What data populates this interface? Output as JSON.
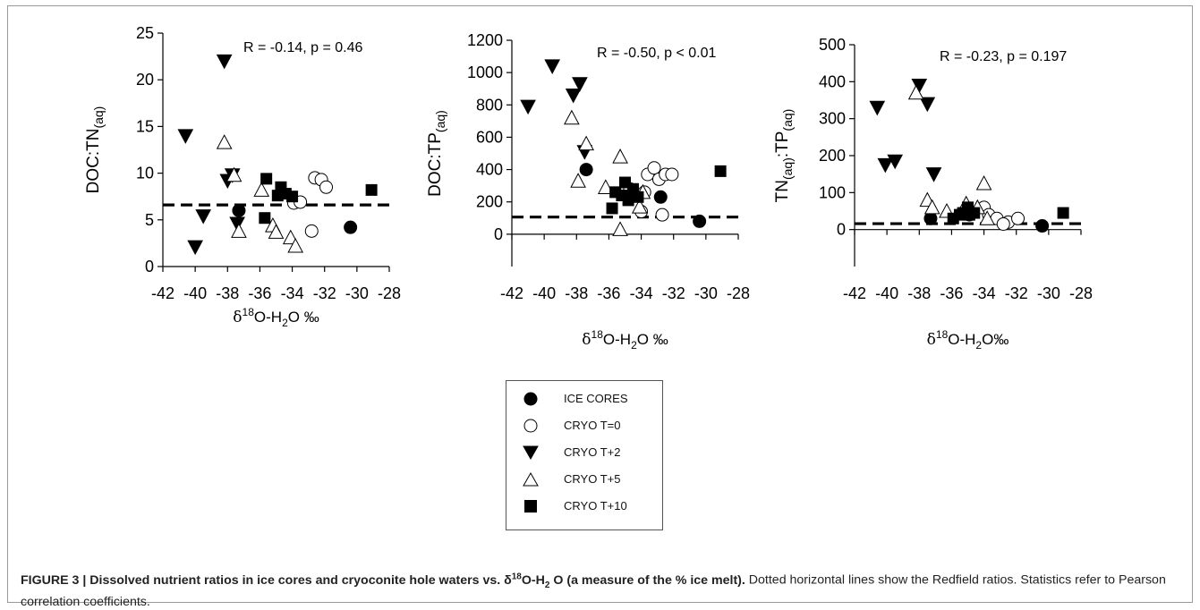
{
  "chart_data": [
    {
      "type": "scatter",
      "ylabel": "DOC:TN",
      "ylabel_sub": "(aq)",
      "xlabel_delta": "δ",
      "xlabel_sup": "18",
      "xlabel_a": "O-H",
      "xlabel_sub": "2",
      "xlabel_b": "O ‰",
      "annotation": "R = -0.14, p = 0.46",
      "xlim": [
        -42,
        -28
      ],
      "ylim": [
        0,
        25
      ],
      "xticks": [
        "-42",
        "-40",
        "-38",
        "-36",
        "-34",
        "-32",
        "-30",
        "-28"
      ],
      "yticks": [
        "0",
        "5",
        "10",
        "15",
        "20",
        "25"
      ],
      "redfield_ratio": 6.6,
      "series": [
        {
          "name": "ICE CORES",
          "marker": "circle-filled",
          "points": [
            [
              -37.3,
              6.0
            ],
            [
              -30.4,
              4.2
            ]
          ]
        },
        {
          "name": "CRYO T=0",
          "marker": "circle-open",
          "points": [
            [
              -32.6,
              9.5
            ],
            [
              -32.2,
              9.3
            ],
            [
              -31.9,
              8.5
            ],
            [
              -33.9,
              6.8
            ],
            [
              -33.5,
              6.9
            ],
            [
              -32.8,
              3.8
            ]
          ]
        },
        {
          "name": "CRYO T+2",
          "marker": "triangle-down-filled",
          "points": [
            [
              -40.6,
              14.0
            ],
            [
              -38.2,
              22.0
            ],
            [
              -38.0,
              9.2
            ],
            [
              -37.7,
              9.8
            ],
            [
              -39.5,
              5.4
            ],
            [
              -37.4,
              4.6
            ],
            [
              -40.0,
              2.1
            ]
          ]
        },
        {
          "name": "CRYO T+5",
          "marker": "triangle-up-open",
          "points": [
            [
              -38.2,
              13.3
            ],
            [
              -37.6,
              9.8
            ],
            [
              -35.9,
              8.2
            ],
            [
              -37.3,
              3.8
            ],
            [
              -35.2,
              4.4
            ],
            [
              -35.0,
              3.7
            ],
            [
              -34.1,
              3.1
            ],
            [
              -33.8,
              2.2
            ]
          ]
        },
        {
          "name": "CRYO T+10",
          "marker": "square-filled",
          "points": [
            [
              -35.6,
              9.4
            ],
            [
              -35.7,
              5.2
            ],
            [
              -34.9,
              7.6
            ],
            [
              -34.7,
              8.5
            ],
            [
              -34.4,
              7.8
            ],
            [
              -34.0,
              7.5
            ],
            [
              -29.1,
              8.2
            ]
          ]
        }
      ]
    },
    {
      "type": "scatter",
      "ylabel": "DOC:TP",
      "ylabel_sub": "(aq)",
      "xlabel_delta": "δ",
      "xlabel_sup": "18",
      "xlabel_a": "O-H",
      "xlabel_sub": "2",
      "xlabel_b": "O ‰",
      "annotation": "R = -0.50, p < 0.01",
      "xlim": [
        -42,
        -28
      ],
      "ylim": [
        -200,
        1200
      ],
      "xticks": [
        "-42",
        "-40",
        "-38",
        "-36",
        "-34",
        "-32",
        "-30",
        "-28"
      ],
      "yticks": [
        "0",
        "200",
        "400",
        "600",
        "800",
        "1000",
        "1200"
      ],
      "redfield_ratio": 106,
      "series": [
        {
          "name": "ICE CORES",
          "marker": "circle-filled",
          "points": [
            [
              -37.4,
              400
            ],
            [
              -32.8,
              230
            ],
            [
              -30.4,
              80
            ]
          ]
        },
        {
          "name": "CRYO T=0",
          "marker": "circle-open",
          "points": [
            [
              -33.6,
              370
            ],
            [
              -33.2,
              410
            ],
            [
              -32.9,
              340
            ],
            [
              -32.5,
              370
            ],
            [
              -32.1,
              370
            ],
            [
              -32.7,
              120
            ],
            [
              -34.0,
              140
            ],
            [
              -34.7,
              280
            ],
            [
              -33.8,
              260
            ]
          ]
        },
        {
          "name": "CRYO T+2",
          "marker": "triangle-down-filled",
          "points": [
            [
              -41.0,
              790
            ],
            [
              -39.5,
              1040
            ],
            [
              -38.2,
              860
            ],
            [
              -37.8,
              930
            ],
            [
              -37.5,
              510
            ]
          ]
        },
        {
          "name": "CRYO T+5",
          "marker": "triangle-up-open",
          "points": [
            [
              -38.3,
              720
            ],
            [
              -37.4,
              560
            ],
            [
              -37.9,
              330
            ],
            [
              -36.2,
              290
            ],
            [
              -35.3,
              480
            ],
            [
              -34.1,
              170
            ],
            [
              -33.9,
              260
            ],
            [
              -35.3,
              30
            ]
          ]
        },
        {
          "name": "CRYO T+10",
          "marker": "square-filled",
          "points": [
            [
              -35.0,
              320
            ],
            [
              -35.6,
              260
            ],
            [
              -34.5,
              280
            ],
            [
              -34.2,
              230
            ],
            [
              -35.2,
              240
            ],
            [
              -35.8,
              160
            ],
            [
              -34.8,
              210
            ],
            [
              -29.1,
              390
            ]
          ]
        }
      ]
    },
    {
      "type": "scatter",
      "ylabel": "TN",
      "ylabel_sub": "(aq)",
      "ylabel_mid": ":TP",
      "ylabel_sub2": "(aq)",
      "xlabel_delta": "δ",
      "xlabel_sup": "18",
      "xlabel_a": "O-H",
      "xlabel_sub": "2",
      "xlabel_b": "O‰",
      "annotation": "R = -0.23, p = 0.197",
      "xlim": [
        -42,
        -28
      ],
      "ylim": [
        -100,
        500
      ],
      "xticks": [
        "-42",
        "-40",
        "-38",
        "-36",
        "-34",
        "-32",
        "-30",
        "-28"
      ],
      "yticks": [
        "0",
        "100",
        "200",
        "300",
        "400",
        "500"
      ],
      "redfield_ratio": 16,
      "series": [
        {
          "name": "ICE CORES",
          "marker": "circle-filled",
          "points": [
            [
              -37.3,
              30
            ],
            [
              -34.9,
              40
            ],
            [
              -30.4,
              10
            ]
          ]
        },
        {
          "name": "CRYO T=0",
          "marker": "circle-open",
          "points": [
            [
              -34.0,
              60
            ],
            [
              -33.7,
              40
            ],
            [
              -33.2,
              30
            ],
            [
              -32.5,
              20
            ],
            [
              -31.9,
              30
            ],
            [
              -32.8,
              15
            ]
          ]
        },
        {
          "name": "CRYO T+2",
          "marker": "triangle-down-filled",
          "points": [
            [
              -40.6,
              330
            ],
            [
              -40.1,
              175
            ],
            [
              -39.5,
              185
            ],
            [
              -38.0,
              390
            ],
            [
              -37.5,
              340
            ],
            [
              -37.1,
              150
            ]
          ]
        },
        {
          "name": "CRYO T+5",
          "marker": "triangle-up-open",
          "points": [
            [
              -38.2,
              370
            ],
            [
              -37.5,
              80
            ],
            [
              -37.2,
              60
            ],
            [
              -36.3,
              50
            ],
            [
              -35.1,
              70
            ],
            [
              -34.4,
              60
            ],
            [
              -34.0,
              125
            ],
            [
              -33.8,
              30
            ]
          ]
        },
        {
          "name": "CRYO T+10",
          "marker": "square-filled",
          "points": [
            [
              -35.9,
              30
            ],
            [
              -35.5,
              40
            ],
            [
              -35.3,
              45
            ],
            [
              -35.0,
              60
            ],
            [
              -34.9,
              40
            ],
            [
              -34.6,
              45
            ],
            [
              -29.1,
              45
            ]
          ]
        }
      ]
    }
  ],
  "legend": [
    {
      "label": "ICE CORES",
      "marker": "circle-filled"
    },
    {
      "label": "CRYO T=0",
      "marker": "circle-open"
    },
    {
      "label": "CRYO T+2",
      "marker": "triangle-down-filled"
    },
    {
      "label": "CRYO T+5",
      "marker": "triangle-up-open"
    },
    {
      "label": "CRYO T+10",
      "marker": "square-filled"
    }
  ],
  "caption": {
    "lead_a": "FIGURE 3 | Dissolved nutrient ratios in ice cores and cryoconite hole waters vs. δ",
    "lead_sup": "18",
    "lead_b": "O-H",
    "lead_sub": "2",
    "lead_c": "O (a measure of the % ice melt).",
    "rest": " Dotted horizontal lines show the Redfield ratios. Statistics refer to Pearson correlation coefficients."
  }
}
